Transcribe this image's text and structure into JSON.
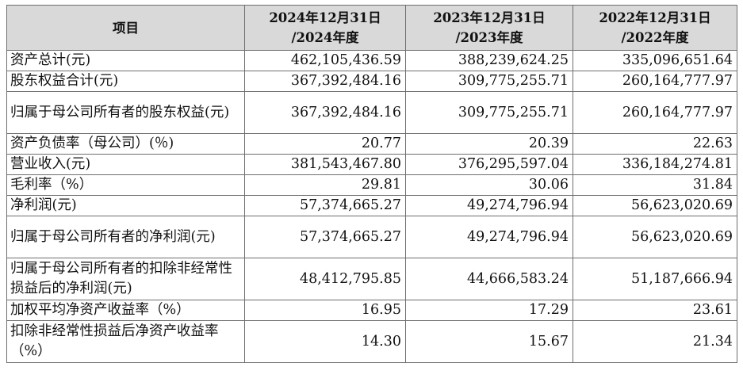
{
  "table": {
    "header": [
      {
        "line1": "项目",
        "line2": ""
      },
      {
        "line1": "2024年12月31日",
        "line2": "/2024年度"
      },
      {
        "line1": "2023年12月31日",
        "line2": "/2023年度"
      },
      {
        "line1": "2022年12月31日",
        "line2": "/2022年度"
      }
    ],
    "rows": [
      {
        "label": "资产总计(元)",
        "values": [
          "462,105,436.59",
          "388,239,624.25",
          "335,096,651.64"
        ]
      },
      {
        "label": "股东权益合计(元)",
        "values": [
          "367,392,484.16",
          "309,775,255.71",
          "260,164,777.97"
        ]
      },
      {
        "label": "归属于母公司所有者的股东权益(元)",
        "values": [
          "367,392,484.16",
          "309,775,255.71",
          "260,164,777.97"
        ]
      },
      {
        "label": "资产负债率（母公司）(％)",
        "values": [
          "20.77",
          "20.39",
          "22.63"
        ]
      },
      {
        "label": "营业收入(元)",
        "values": [
          "381,543,467.80",
          "376,295,597.04",
          "336,184,274.81"
        ]
      },
      {
        "label": "毛利率（%）",
        "values": [
          "29.81",
          "30.06",
          "31.84"
        ]
      },
      {
        "label": "净利润(元)",
        "values": [
          "57,374,665.27",
          "49,274,796.94",
          "56,623,020.69"
        ]
      },
      {
        "label": "归属于母公司所有者的净利润(元)",
        "values": [
          "57,374,665.27",
          "49,274,796.94",
          "56,623,020.69"
        ]
      },
      {
        "label": "归属于母公司所有者的扣除非经常性损益后的净利润(元)",
        "values": [
          "48,412,795.85",
          "44,666,583.24",
          "51,187,666.94"
        ]
      },
      {
        "label": "加权平均净资产收益率（%）",
        "values": [
          "16.95",
          "17.29",
          "23.61"
        ]
      },
      {
        "label": "扣除非经常性损益后净资产收益率（%）",
        "values": [
          "14.30",
          "15.67",
          "21.34"
        ]
      }
    ]
  }
}
